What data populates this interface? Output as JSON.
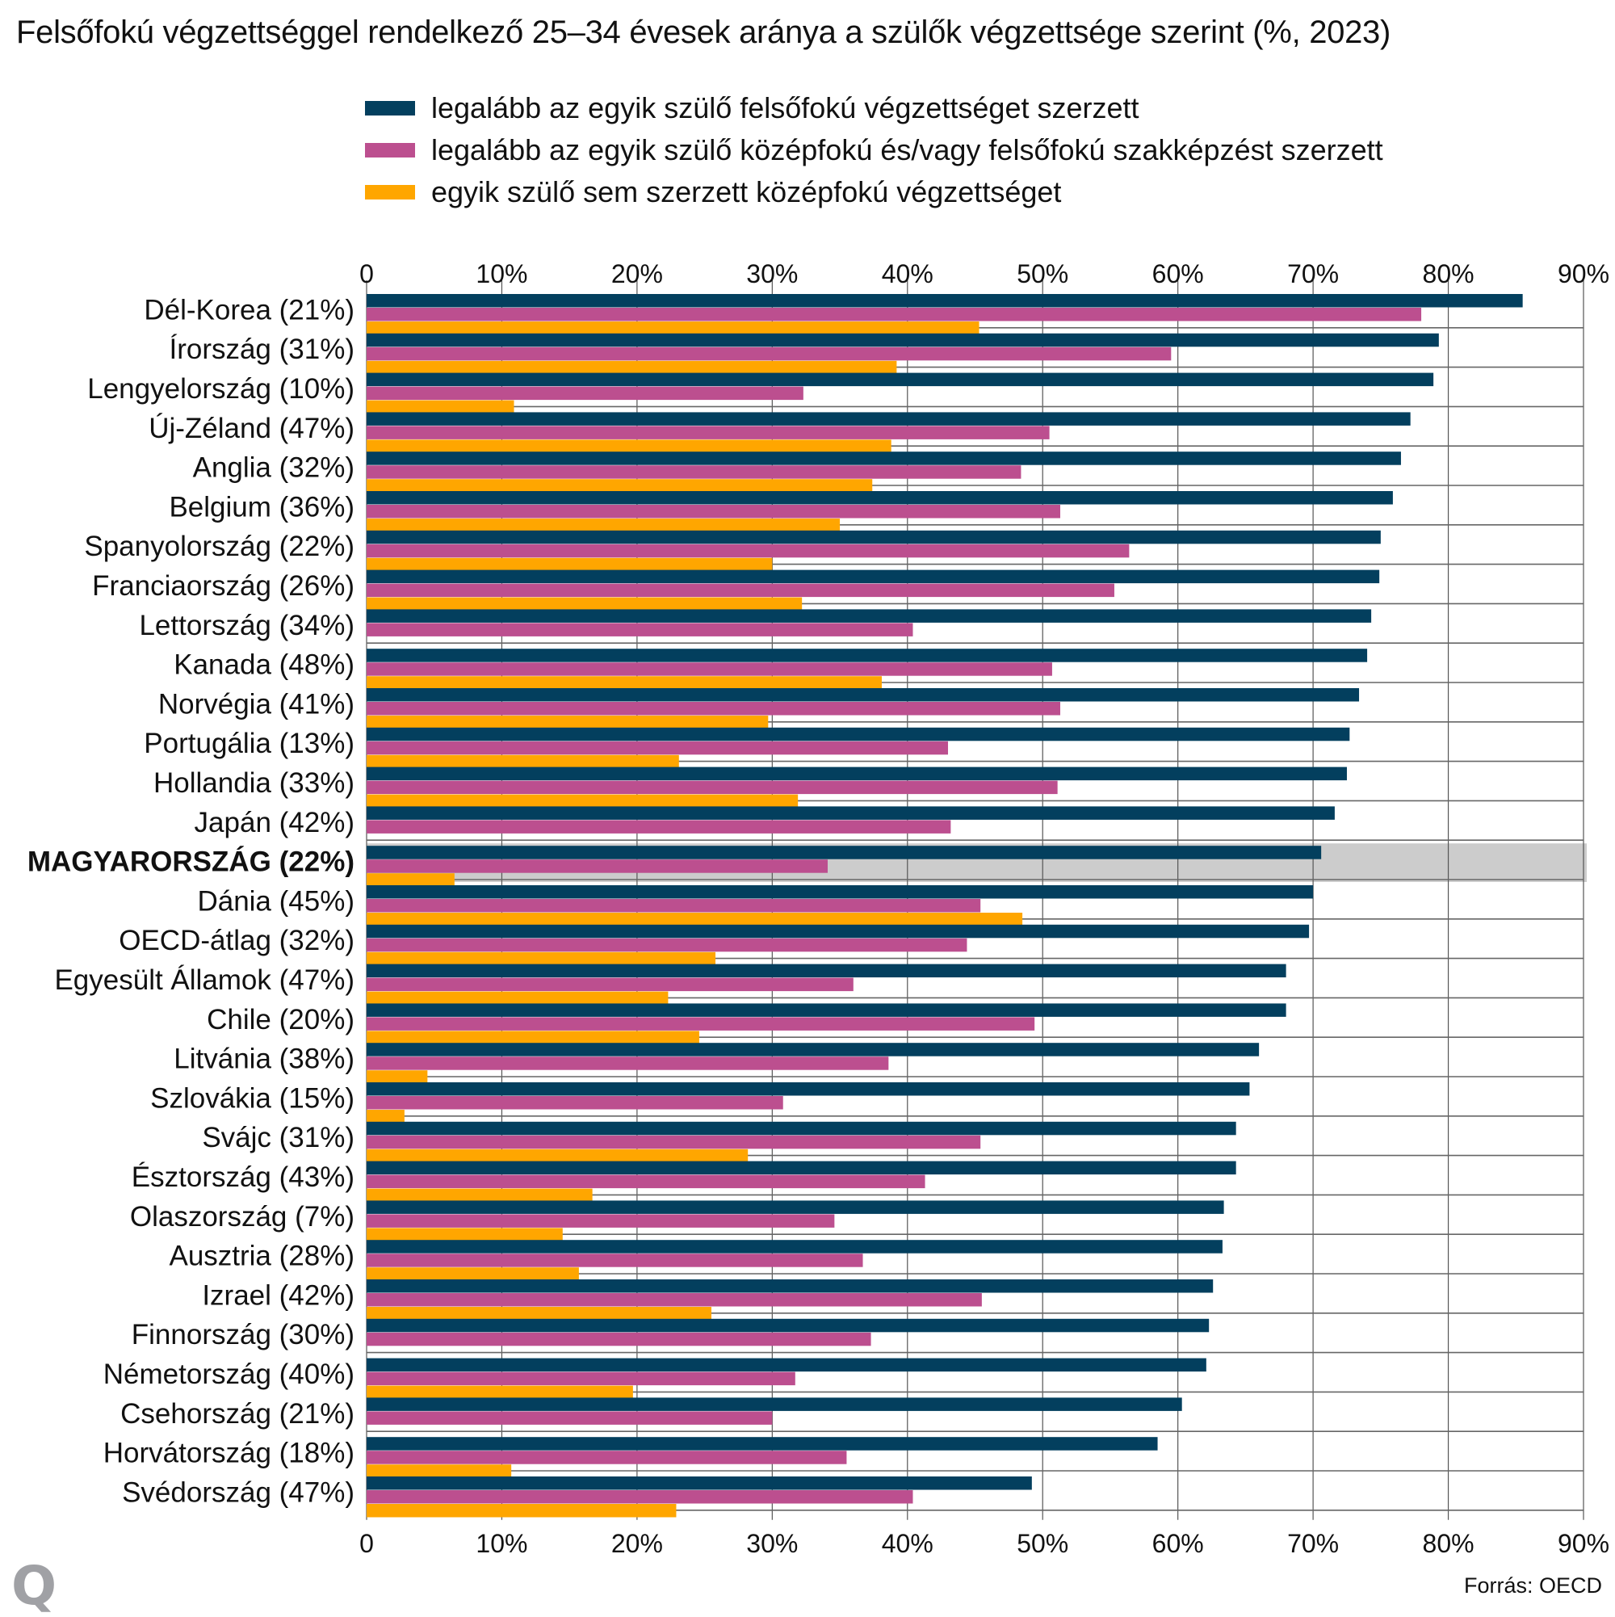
{
  "chart_data": {
    "type": "bar",
    "orientation": "horizontal",
    "title": "Felsőfokú végzettséggel rendelkező 25–34 évesek aránya a szülők végzettsége szerint (%, 2023)",
    "xlabel": "",
    "ylabel": "",
    "xlim": [
      0,
      90
    ],
    "xticks": [
      0,
      10,
      20,
      30,
      40,
      50,
      60,
      70,
      80,
      90
    ],
    "xtick_labels": [
      "0",
      "10%",
      "20%",
      "30%",
      "40%",
      "50%",
      "60%",
      "70%",
      "80%",
      "90%"
    ],
    "grid": true,
    "legend_position": "top",
    "highlight_category": "MAGYARORSZÁG (22%)",
    "categories": [
      "Dél-Korea (21%)",
      "Írország (31%)",
      "Lengyelország (10%)",
      "Új-Zéland (47%)",
      "Anglia (32%)",
      "Belgium (36%)",
      "Spanyolország (22%)",
      "Franciaország (26%)",
      "Lettország (34%)",
      "Kanada (48%)",
      "Norvégia (41%)",
      "Portugália (13%)",
      "Hollandia (33%)",
      "Japán (42%)",
      "MAGYARORSZÁG (22%)",
      "Dánia (45%)",
      "OECD-átlag (32%)",
      "Egyesült Államok (47%)",
      "Chile (20%)",
      "Litvánia (38%)",
      "Szlovákia (15%)",
      "Svájc (31%)",
      "Észtország (43%)",
      "Olaszország (7%)",
      "Ausztria (28%)",
      "Izrael (42%)",
      "Finnország (30%)",
      "Németország (40%)",
      "Csehország (21%)",
      "Horvátország (18%)",
      "Svédország (47%)"
    ],
    "series": [
      {
        "name": "legalább az egyik szülő felsőfokú végzettséget szerzett",
        "color": "#033f5e",
        "values": [
          85.5,
          79.3,
          78.9,
          77.2,
          76.5,
          75.9,
          75.0,
          74.9,
          74.3,
          74.0,
          73.4,
          72.7,
          72.5,
          71.6,
          70.6,
          70.0,
          69.7,
          68.0,
          68.0,
          66.0,
          65.3,
          64.3,
          64.3,
          63.4,
          63.3,
          62.6,
          62.3,
          62.1,
          60.3,
          58.5,
          49.2
        ]
      },
      {
        "name": "legalább az egyik szülő középfokú és/vagy felsőfokú szakképzést szerzett",
        "color": "#bc4f8f",
        "values": [
          78.0,
          59.5,
          32.3,
          50.5,
          48.4,
          51.3,
          56.4,
          55.3,
          40.4,
          50.7,
          51.3,
          43.0,
          51.1,
          43.2,
          34.1,
          45.4,
          44.4,
          36.0,
          49.4,
          38.6,
          30.8,
          45.4,
          41.3,
          34.6,
          36.7,
          45.5,
          37.3,
          31.7,
          30.0,
          35.5,
          40.4
        ]
      },
      {
        "name": "egyik szülő sem szerzett középfokú végzettséget",
        "color": "#ffa600",
        "values": [
          45.3,
          39.2,
          10.9,
          38.8,
          37.4,
          35.0,
          30.0,
          32.2,
          null,
          38.1,
          29.7,
          23.1,
          31.9,
          null,
          6.5,
          48.5,
          25.8,
          22.3,
          24.6,
          4.5,
          2.8,
          28.2,
          16.7,
          14.5,
          15.7,
          25.5,
          null,
          19.7,
          null,
          10.7,
          22.9
        ]
      }
    ]
  },
  "header": {
    "title": "Felsőfokú végzettséggel rendelkező 25–34 évesek aránya a szülők végzettsége szerint (%, 2023)"
  },
  "legend": [
    {
      "label": "legalább az egyik szülő felsőfokú végzettséget szerzett",
      "color": "#033f5e"
    },
    {
      "label": "legalább az egyik szülő középfokú és/vagy felsőfokú szakképzést szerzett",
      "color": "#bc4f8f"
    },
    {
      "label": "egyik szülő sem szerzett középfokú végzettséget",
      "color": "#ffa600"
    }
  ],
  "colors": {
    "highlight_band": "#cccccc",
    "grid": "#555555",
    "logo": "#a0a1a5"
  },
  "footer": {
    "logo_text": "Q",
    "source": "Forrás: OECD"
  }
}
